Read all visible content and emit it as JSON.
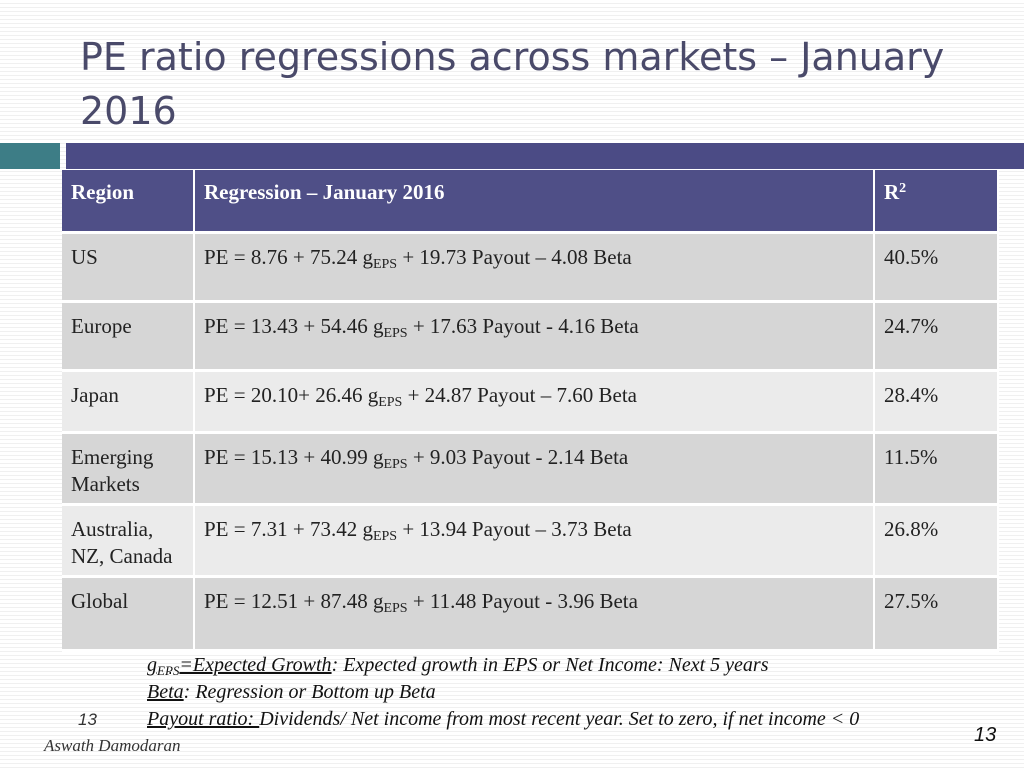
{
  "title": "PE ratio regressions across markets – January 2016",
  "table": {
    "headers": {
      "region": "Region",
      "regression": "Regression – January 2016",
      "r2_base": "R",
      "r2_sup": "2"
    },
    "rows": [
      {
        "region": "US",
        "pe": "PE = 8.76 + 75.24 g",
        "sub": "EPS",
        "rest": " + 19.73 Payout – 4.08 Beta",
        "r2": "40.5%"
      },
      {
        "region": "Europe",
        "pe": "PE = 13.43 + 54.46 g",
        "sub": "EPS",
        "rest": " + 17.63 Payout - 4.16 Beta",
        "r2": "24.7%"
      },
      {
        "region": "Japan",
        "pe": "PE = 20.10+ 26.46 g",
        "sub": "EPS",
        "rest": " + 24.87 Payout – 7.60 Beta",
        "r2": "28.4%"
      },
      {
        "region": "Emerging Markets",
        "pe": "PE = 15.13 + 40.99 g",
        "sub": "EPS",
        "rest": " + 9.03 Payout - 2.14 Beta",
        "r2": "11.5%"
      },
      {
        "region": "Australia, NZ, Canada",
        "pe": "PE = 7.31 + 73.42 g",
        "sub": "EPS",
        "rest": " + 13.94 Payout – 3.73 Beta",
        "r2": "26.8%"
      },
      {
        "region": "Global",
        "pe": "PE = 12.51 + 87.48 g",
        "sub": "EPS",
        "rest": " + 11.48 Payout - 3.96 Beta",
        "r2": "27.5%"
      }
    ]
  },
  "notes": {
    "g_base": "g",
    "g_sub": "EPS",
    "g_term": "=Expected Growth",
    "g_desc": ": Expected growth in EPS or Net Income: Next 5 years",
    "beta_term": "Beta",
    "beta_desc": ": Regression or Bottom up Beta",
    "payout_term": "Payout ratio: ",
    "payout_desc": "Dividends/ Net income from most recent year. Set to zero, if net income < 0"
  },
  "footer": {
    "slide_number": "13",
    "author": "Aswath Damodaran",
    "page_number": "13"
  },
  "colors": {
    "header_bg": "#4f4f87",
    "accent_teal": "#3d7d86",
    "accent_bar": "#4b4b85",
    "row_dark": "#d6d6d6",
    "row_light": "#ebebeb"
  }
}
